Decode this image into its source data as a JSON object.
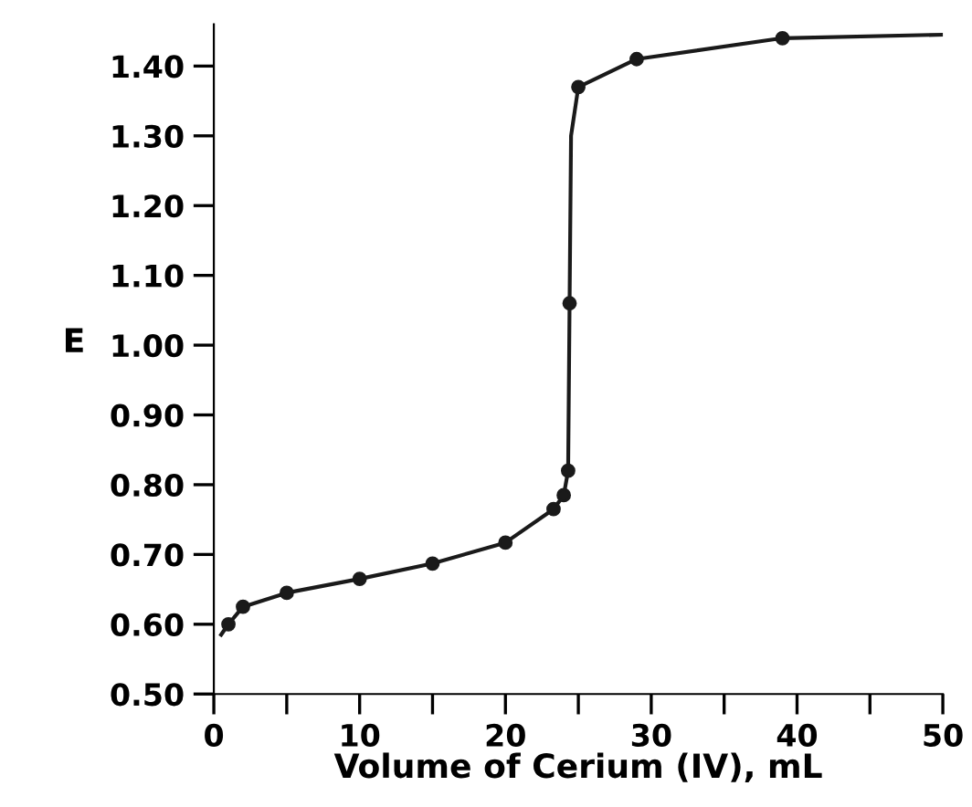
{
  "chart_data": {
    "type": "line",
    "xlabel": "Volume of Cerium (IV), mL",
    "ylabel": "E",
    "xlim": [
      0,
      50
    ],
    "ylim": [
      0.5,
      1.46
    ],
    "xticks": [
      0,
      {
        "value": 5,
        "label": null
      },
      10,
      {
        "value": 15,
        "label": null
      },
      20,
      {
        "value": 25,
        "label": null
      },
      30,
      {
        "value": 35,
        "label": null
      },
      40,
      {
        "value": 45,
        "label": null
      },
      50
    ],
    "yticks": [
      {
        "value": 0.5,
        "label": "0.50"
      },
      {
        "value": 0.6,
        "label": "0.60"
      },
      {
        "value": 0.7,
        "label": "0.70"
      },
      {
        "value": 0.8,
        "label": "0.80"
      },
      {
        "value": 0.9,
        "label": "0.90"
      },
      {
        "value": 1.0,
        "label": "1.00"
      },
      {
        "value": 1.1,
        "label": "1.10"
      },
      {
        "value": 1.2,
        "label": "1.20"
      },
      {
        "value": 1.3,
        "label": "1.30"
      },
      {
        "value": 1.4,
        "label": "1.40"
      }
    ],
    "grid": false,
    "legend": false,
    "series": [
      {
        "color": "#1a1a1a",
        "marker": "none",
        "x": [
          0.5,
          1,
          2,
          5,
          10,
          15,
          20,
          23.3,
          24,
          24.3,
          24.4,
          24.5,
          25,
          29,
          39,
          50
        ],
        "values": [
          0.585,
          0.6,
          0.625,
          0.645,
          0.665,
          0.687,
          0.717,
          0.765,
          0.785,
          0.82,
          1.06,
          1.3,
          1.37,
          1.41,
          1.44,
          1.445
        ]
      },
      {
        "type": "scatter",
        "color": "#1a1a1a",
        "marker": "circle",
        "x": [
          1,
          2,
          5,
          10,
          15,
          20,
          23.3,
          24,
          24.3,
          24.4,
          25,
          29,
          39
        ],
        "values": [
          0.6,
          0.625,
          0.645,
          0.665,
          0.687,
          0.717,
          0.765,
          0.785,
          0.82,
          1.06,
          1.37,
          1.41,
          1.44
        ]
      }
    ]
  }
}
